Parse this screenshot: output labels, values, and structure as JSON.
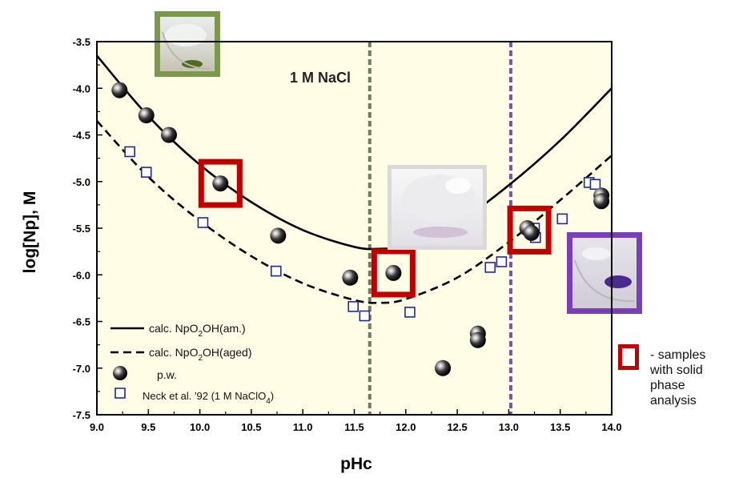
{
  "chart_data": {
    "type": "scatter",
    "title": "",
    "xlabel": "pHc",
    "ylabel": "log[Np], M",
    "xlim": [
      9.0,
      14.0
    ],
    "ylim": [
      -7.5,
      -3.5
    ],
    "x_ticks": [
      "9.0",
      "9.5",
      "10.0",
      "10.5",
      "11.0",
      "11.5",
      "12.0",
      "12.5",
      "13.0",
      "13.5",
      "14.0"
    ],
    "y_ticks": [
      "-3.5",
      "-4.0",
      "-4.5",
      "-5.0",
      "-5.5",
      "-6.0",
      "-6.5",
      "-7.0",
      "-7.5"
    ],
    "annotation": "1 M NaCl",
    "series": [
      {
        "name": "calc. NpO2OH(am.)",
        "label_main": "calc. NpO",
        "label_sub": "2",
        "label_tail": "OH(am.)",
        "kind": "line",
        "style": "solid",
        "x": [
          9.0,
          9.5,
          10.0,
          10.5,
          11.0,
          11.5,
          11.75,
          12.0,
          12.5,
          13.0,
          13.5,
          14.0
        ],
        "y": [
          -3.65,
          -4.3,
          -4.82,
          -5.22,
          -5.52,
          -5.7,
          -5.72,
          -5.68,
          -5.44,
          -5.04,
          -4.56,
          -4.0
        ]
      },
      {
        "name": "calc. NpO2OH(aged)",
        "label_main": "calc. NpO",
        "label_sub": "2",
        "label_tail": "OH(aged)",
        "kind": "line",
        "style": "dashed",
        "x": [
          9.0,
          9.5,
          10.0,
          10.5,
          11.0,
          11.5,
          11.75,
          12.0,
          12.5,
          13.0,
          13.5,
          14.0
        ],
        "y": [
          -4.35,
          -4.95,
          -5.42,
          -5.8,
          -6.09,
          -6.27,
          -6.3,
          -6.26,
          -6.03,
          -5.65,
          -5.2,
          -4.72
        ]
      },
      {
        "name": "p.w.",
        "label_main": "p.w.",
        "label_sub": "",
        "label_tail": "",
        "kind": "marker",
        "marker": "ball",
        "x": [
          9.22,
          9.48,
          9.7,
          10.2,
          10.76,
          11.46,
          11.88,
          12.36,
          12.7,
          12.7,
          13.18,
          13.22,
          13.9,
          13.9
        ],
        "y": [
          -4.02,
          -4.29,
          -4.5,
          -5.02,
          -5.58,
          -6.03,
          -5.98,
          -7.0,
          -6.63,
          -6.7,
          -5.5,
          -5.55,
          -5.15,
          -5.21
        ]
      },
      {
        "name": "Neck et al. '92 (1 M NaClO4)",
        "label_main": "Neck et al. '92 (1 M NaClO",
        "label_sub": "4",
        "label_tail": ")",
        "kind": "marker",
        "marker": "open-square",
        "x": [
          9.32,
          9.48,
          10.03,
          10.74,
          11.49,
          11.6,
          12.04,
          12.82,
          12.93,
          13.26,
          13.25,
          13.52,
          13.78,
          13.84
        ],
        "y": [
          -4.68,
          -4.9,
          -5.44,
          -5.96,
          -6.34,
          -6.44,
          -6.4,
          -5.92,
          -5.86,
          -5.6,
          -5.5,
          -5.4,
          -5.01,
          -5.03
        ]
      }
    ],
    "vertical_lines": [
      {
        "x": 11.65,
        "color": "#6b7f5c"
      },
      {
        "x": 13.02,
        "color": "#7b55a8"
      }
    ],
    "highlighted_samples": [
      {
        "x": 10.2,
        "y": -5.02
      },
      {
        "x": 11.88,
        "y": -5.98
      },
      {
        "x": 13.2,
        "y": -5.52
      }
    ],
    "legend_position": "bottom-left",
    "grid": false,
    "colors": {
      "plot_bg": "#fffde6",
      "highlight": "#c00000",
      "open_square": "#1f2b8f",
      "green_frame": "#7a9a4a",
      "purple_frame": "#7a3fb8",
      "photo_white_frame": "#e8e8e8"
    },
    "side_note": {
      "line1": "- samples",
      "line2": "with solid",
      "line3": "phase",
      "line4": "analysis"
    }
  }
}
